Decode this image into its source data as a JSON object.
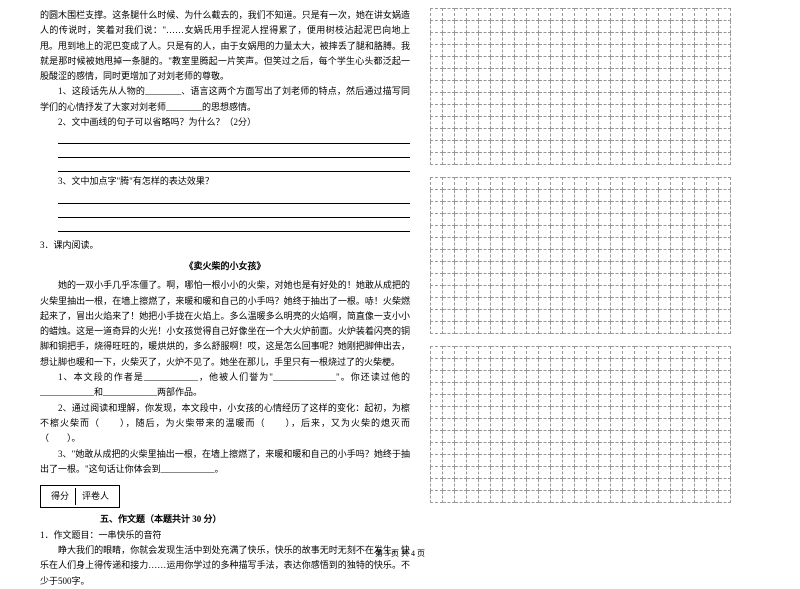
{
  "leftColumn": {
    "intro": "的圆木围栏支撑。这条腿什么时候、为什么截去的，我们不知道。只是有一次，她在讲女娲造人的传说时，笑着对我们说：\"……女娲氏用手捏泥人捏得累了，便用树枝沾起泥巴向地上甩。甩到地上的泥巴变成了人。只是有的人，由于女娲甩的力量太大，被摔丢了腿和胳膊。我就是那时候被她甩掉一条腿的。\"教室里腾起一片笑声。但笑过之后，每个学生心头都泛起一股酸涩的感情，同时更增加了对刘老师的尊敬。",
    "q1": "1、这段话先从人物的________、语言这两个方面写出了刘老师的特点，然后通过描写同学们的心情抒发了大家对刘老师________的思想感情。",
    "q2": "2、文中画线的句子可以省略吗？为什么？（2分）",
    "q3": "3、文中加点字\"腾\"有怎样的表达效果？",
    "reading3": "3．课内阅读。",
    "storyTitle": "《卖火柴的小女孩》",
    "storyText": "她的一双小手几乎冻僵了。啊，哪怕一根小小的火柴，对她也是有好处的！她敢从成把的火柴里抽出一根，在墙上擦燃了，来暖和暖和自己的小手吗？她终于抽出了一根。哧！火柴燃起来了，冒出火焰来了！她把小手拢在火焰上。多么温暖多么明亮的火焰啊，简直像一支小小的蜡烛。这是一道奇异的火光！小女孩觉得自己好像坐在一个大火炉前面。火炉装着闪亮的铜脚和铜把手，烧得旺旺的，暖烘烘的，多么舒服啊！哎，这是怎么回事呢？她刚把脚伸出去，想让脚也暖和一下，火柴灭了，火炉不见了。她坐在那儿，手里只有一根烧过了的火柴梗。",
    "sq1a": "1、本文段的作者是____________，他被人们誉为\"______________\"。你还读过他的____________和____________两部作品。",
    "sq2": "2、通过阅读和理解，你发现，本文段中，小女孩的心情经历了这样的变化：起初，为檫不檫火柴而（　　），随后，为火柴带来的温暖而（　　），后来，又为火柴的熄灭而（　　）。",
    "sq3": "3、\"她敢从成把的火柴里抽出一根，在墙上擦燃了，来暖和暖和自己的小手吗？她终于抽出了一根。\"这句话让你体会到____________。",
    "scoreLabel1": "得分",
    "scoreLabel2": "评卷人",
    "section5Title": "五、作文题（本题共计 30 分）",
    "essayNum": "1．作文题目：一串快乐的音符",
    "essayText": "睁大我们的眼睛，你就会发现生活中到处充满了快乐，快乐的故事无时无刻不在发生，快乐在人们身上得传递和接力……运用你学过的多种描写手法，表达你感悟到的独特的快乐。不少于500字。"
  },
  "grid": {
    "rows": 13,
    "cols": 25,
    "blocks": 3,
    "cellSize": 12,
    "borderColor": "#999999"
  },
  "footer": "第 3 页  共 4 页"
}
